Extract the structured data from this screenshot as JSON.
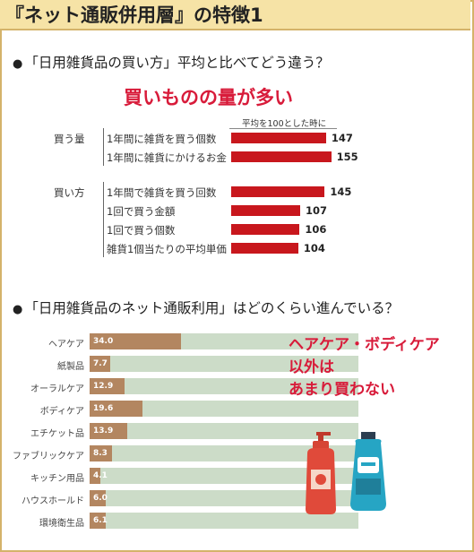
{
  "header": {
    "title": "『ネット通販併用層』の特徴1"
  },
  "section1": {
    "bullet": "●",
    "question": "「日用雑貨品の買い方」平均と比べてどう違う？",
    "headline": "買いものの量が多い",
    "note": "平均を100とした時に"
  },
  "section2": {
    "bullet": "●",
    "question": "「日用雑貨品のネット通販利用」はどのくらい進んでいる？",
    "headline_lines": [
      "ヘアケア・ボディケア",
      "以外は",
      "あまり買わない"
    ]
  },
  "colors": {
    "accent": "#d81b3a",
    "bar_red": "#c8171d",
    "bar_brown": "#b38660",
    "track_green": "#ccdcc8",
    "header_bg": "#f6e3a6"
  },
  "chart_data": [
    {
      "type": "bar",
      "orientation": "horizontal",
      "title": "買いものの量が多い",
      "note": "平均を100とした時に",
      "groups": [
        {
          "name": "買う量",
          "items": [
            {
              "label": "1年間に雑貨を買う個数",
              "value": 147
            },
            {
              "label": "1年間に雑貨にかけるお金",
              "value": 155
            }
          ]
        },
        {
          "name": "買い方",
          "items": [
            {
              "label": "1年間で雑貨を買う回数",
              "value": 145
            },
            {
              "label": "1回で買う金額",
              "value": 107
            },
            {
              "label": "1回で買う個数",
              "value": 106
            },
            {
              "label": "雑貨1個当たりの平均単価",
              "value": 104
            }
          ]
        }
      ]
    },
    {
      "type": "bar",
      "orientation": "horizontal",
      "categories": [
        "ヘアケア",
        "紙製品",
        "オーラルケア",
        "ボディケア",
        "エチケット品",
        "ファブリックケア",
        "キッチン用品",
        "ハウスホールド",
        "環境衛生品"
      ],
      "values": [
        34.0,
        7.7,
        12.9,
        19.6,
        13.9,
        8.3,
        4.1,
        6.0,
        6.1
      ],
      "value_labels": [
        "34.0",
        "7.7",
        "12.9",
        "19.6",
        "13.9",
        "8.3",
        "4.1",
        "6.0",
        "6.1"
      ],
      "xlim": [
        0,
        100
      ]
    }
  ]
}
